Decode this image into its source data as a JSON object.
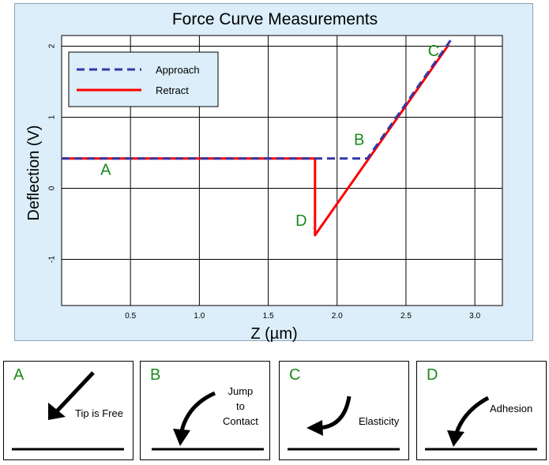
{
  "chart_data": {
    "type": "line",
    "title": "Force Curve Measurements",
    "xlabel": "Z (µm)",
    "ylabel": "Deflection (V)",
    "xlim": [
      0.0,
      3.2
    ],
    "ylim": [
      -1.65,
      2.15
    ],
    "xticks": [
      0.5,
      1.0,
      1.5,
      2.0,
      2.5,
      3.0
    ],
    "xtick_labels": [
      "0.5",
      "1.0",
      "1.5",
      "2.0",
      "2.5",
      "3.0"
    ],
    "yticks": [
      -1,
      0,
      1,
      2
    ],
    "ytick_labels": [
      "-1",
      "0",
      "1",
      "2"
    ],
    "grid": true,
    "legend_position": "top-left",
    "series": [
      {
        "name": "Approach",
        "style": "dashed",
        "color": "#3535a6",
        "x": [
          0.0,
          2.22,
          2.83
        ],
        "y": [
          0.42,
          0.42,
          2.1
        ]
      },
      {
        "name": "Retract",
        "style": "solid",
        "color": "#ff0000",
        "x": [
          0.0,
          1.84,
          1.84,
          2.81
        ],
        "y": [
          0.42,
          0.42,
          -0.66,
          2.02
        ]
      }
    ],
    "annotations": [
      {
        "text": "A",
        "x": 0.32,
        "y": 0.19
      },
      {
        "text": "B",
        "x": 2.16,
        "y": 0.61
      },
      {
        "text": "C",
        "x": 2.7,
        "y": 1.86
      },
      {
        "text": "D",
        "x": 1.74,
        "y": -0.53
      }
    ],
    "annotation_color": "#1a8a1a"
  },
  "panels": [
    {
      "letter": "A",
      "caption_lines": [
        "Tip is Free"
      ]
    },
    {
      "letter": "B",
      "caption_lines": [
        "Jump",
        "to",
        "Contact"
      ]
    },
    {
      "letter": "C",
      "caption_lines": [
        "Elasticity"
      ]
    },
    {
      "letter": "D",
      "caption_lines": [
        "Adhesion"
      ]
    }
  ]
}
